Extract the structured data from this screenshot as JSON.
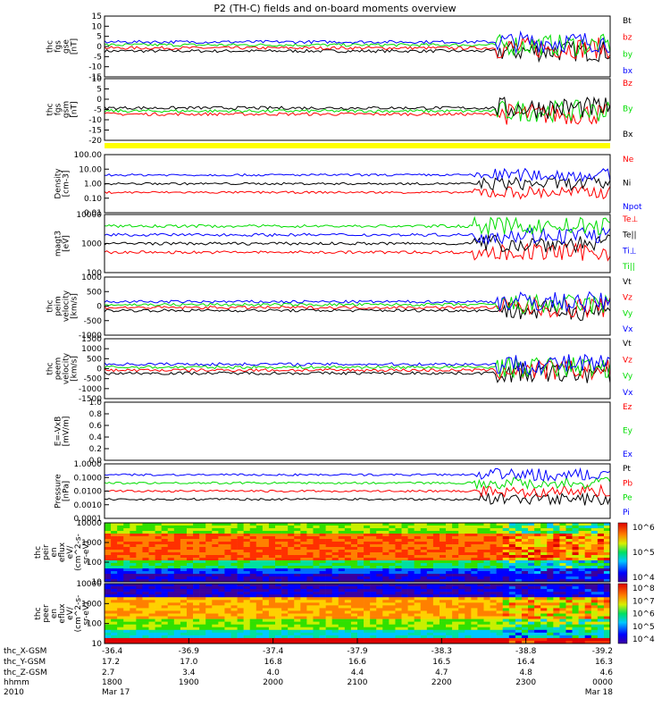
{
  "title": "P2 (TH-C) fields and on-board moments overview",
  "chart_data": [
    {
      "type": "line",
      "ylabel": [
        "thc",
        "fgs",
        "gse",
        "[nT]"
      ],
      "ylim": [
        -15,
        15
      ],
      "yticks": [
        "15",
        "10",
        "5",
        "0",
        "-5",
        "-10",
        "-15"
      ],
      "legend": [
        {
          "name": "Bt",
          "color": "#000000"
        },
        {
          "name": "bz",
          "color": "#ff0000"
        },
        {
          "name": "by",
          "color": "#00dd00"
        },
        {
          "name": "bx",
          "color": "#0000ff"
        }
      ]
    },
    {
      "type": "line",
      "ylabel": [
        "thc",
        "fgs",
        "gsm",
        "[nT]"
      ],
      "ylim": [
        -22,
        10
      ],
      "yticks": [
        "10",
        "5",
        "0",
        "-5",
        "-10",
        "-15",
        "-20"
      ],
      "legend": [
        {
          "name": "Bz",
          "color": "#ff0000"
        },
        {
          "name": "By",
          "color": "#00dd00"
        },
        {
          "name": "Bx",
          "color": "#000000"
        }
      ]
    },
    {
      "type": "line",
      "ylabel": [
        "Density",
        "[cm-3]"
      ],
      "log": true,
      "ylim": [
        0.01,
        100
      ],
      "yticks": [
        "100.00",
        "10.00",
        "1.00",
        "0.10",
        "0.01"
      ],
      "legend": [
        {
          "name": "Ne",
          "color": "#ff0000"
        },
        {
          "name": "Ni",
          "color": "#000000"
        },
        {
          "name": "Npot",
          "color": "#0000ff"
        }
      ]
    },
    {
      "type": "line",
      "ylabel": [
        "magt3",
        "[eV]"
      ],
      "log": true,
      "ylim": [
        10,
        10000
      ],
      "yticks": [
        "10000",
        "1000",
        "100"
      ],
      "legend": [
        {
          "name": "Te⊥",
          "color": "#ff0000"
        },
        {
          "name": "Te||",
          "color": "#000000"
        },
        {
          "name": "Ti⊥",
          "color": "#0000ff"
        },
        {
          "name": "Ti||",
          "color": "#00dd00"
        }
      ]
    },
    {
      "type": "line",
      "ylabel": [
        "thc",
        "peim",
        "velocity",
        "[km/s]"
      ],
      "ylim": [
        -1000,
        1000
      ],
      "yticks": [
        "1000",
        "500",
        "0",
        "-500",
        "-1000"
      ],
      "legend": [
        {
          "name": "Vt",
          "color": "#000000"
        },
        {
          "name": "Vz",
          "color": "#ff0000"
        },
        {
          "name": "Vy",
          "color": "#00dd00"
        },
        {
          "name": "Vx",
          "color": "#0000ff"
        }
      ]
    },
    {
      "type": "line",
      "ylabel": [
        "thc",
        "peem",
        "velocity",
        "[km/s]"
      ],
      "ylim": [
        -1500,
        1500
      ],
      "yticks": [
        "1500",
        "1000",
        "500",
        "0",
        "-500",
        "-1000",
        "-1500"
      ],
      "legend": [
        {
          "name": "Vt",
          "color": "#000000"
        },
        {
          "name": "Vz",
          "color": "#ff0000"
        },
        {
          "name": "Vy",
          "color": "#00dd00"
        },
        {
          "name": "Vx",
          "color": "#0000ff"
        }
      ]
    },
    {
      "type": "line",
      "ylabel": [
        "E=-VxB",
        "[mV/m]"
      ],
      "ylim": [
        0,
        1
      ],
      "yticks": [
        "1.0",
        "0.8",
        "0.6",
        "0.4",
        "0.2",
        "0.0"
      ],
      "legend": [
        {
          "name": "Ez",
          "color": "#ff0000"
        },
        {
          "name": "Ey",
          "color": "#00dd00"
        },
        {
          "name": "Ex",
          "color": "#0000ff"
        }
      ]
    },
    {
      "type": "line",
      "ylabel": [
        "Pressure",
        "[nPa]"
      ],
      "log": true,
      "ylim": [
        0.0001,
        1
      ],
      "yticks": [
        "1.0000",
        "0.1000",
        "0.0100",
        "0.0010",
        "0.0001"
      ],
      "legend": [
        {
          "name": "Pt",
          "color": "#000000"
        },
        {
          "name": "Pb",
          "color": "#ff0000"
        },
        {
          "name": "Pe",
          "color": "#00dd00"
        },
        {
          "name": "Pi",
          "color": "#0000ff"
        }
      ]
    },
    {
      "type": "heatmap",
      "ylabel": [
        "thc",
        "peir",
        "en",
        "eflux",
        "eV/",
        "(cm^2-s-",
        "sr-eV)"
      ],
      "log": true,
      "ylim": [
        10,
        10000
      ],
      "yticks": [
        "10000",
        "1000",
        "100",
        "10"
      ],
      "colorbar": [
        "10^6",
        "10^5",
        "10^4"
      ]
    },
    {
      "type": "heatmap",
      "ylabel": [
        "thc",
        "peer",
        "en",
        "eflux",
        "eV/",
        "(cm^2-s-",
        "sr-eV)"
      ],
      "log": true,
      "ylim": [
        10,
        10000
      ],
      "yticks": [
        "10000",
        "1000",
        "100",
        "10"
      ],
      "colorbar": [
        "10^8",
        "10^7",
        "10^6",
        "10^5",
        "10^4"
      ]
    }
  ],
  "xaxis": {
    "row_labels": [
      "thc_X-GSM",
      "thc_Y-GSM",
      "thc_Z-GSM",
      "hhmm",
      "2010"
    ],
    "columns": [
      [
        "-36.4",
        "17.2",
        "2.7",
        "1800",
        "Mar 17"
      ],
      [
        "-36.9",
        "17.0",
        "3.4",
        "1900",
        ""
      ],
      [
        "-37.4",
        "16.8",
        "4.0",
        "2000",
        ""
      ],
      [
        "-37.9",
        "16.6",
        "4.4",
        "2100",
        ""
      ],
      [
        "-38.3",
        "16.5",
        "4.7",
        "2200",
        ""
      ],
      [
        "-38.8",
        "16.4",
        "4.8",
        "2300",
        ""
      ],
      [
        "-39.2",
        "16.3",
        "4.6",
        "0000",
        "Mar 18"
      ]
    ]
  }
}
